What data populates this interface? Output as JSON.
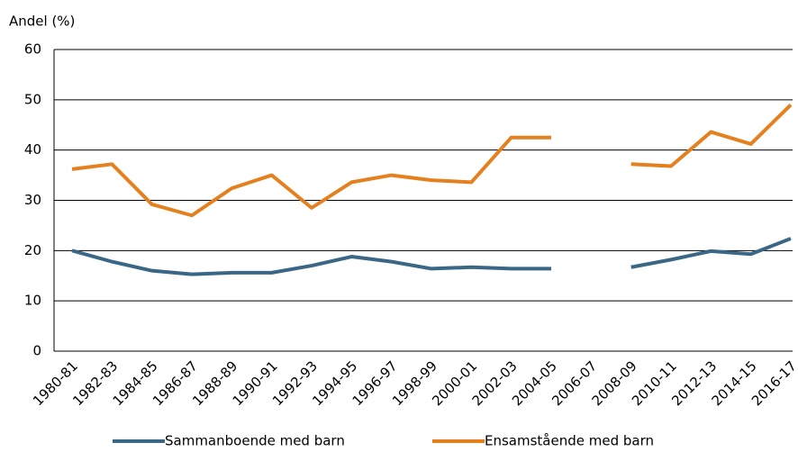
{
  "chart_data": {
    "type": "line",
    "y_label": "Andel (%)",
    "categories": [
      "1980-81",
      "1982-83",
      "1984-85",
      "1986-87",
      "1988-89",
      "1990-91",
      "1992-93",
      "1994-95",
      "1996-97",
      "1998-99",
      "2000-01",
      "2002-03",
      "2004-05",
      "2006-07",
      "2008-09",
      "2010-11",
      "2012-13",
      "2014-15",
      "2016-17"
    ],
    "series": [
      {
        "name": "Sammanboende med barn",
        "color": "#3b6787",
        "values": [
          20,
          17.8,
          16,
          15.3,
          15.6,
          15.6,
          17,
          18.8,
          17.8,
          16.4,
          16.7,
          16.4,
          16.4,
          null,
          16.7,
          18.2,
          19.9,
          19.3,
          22.4
        ]
      },
      {
        "name": "Ensamstående med barn",
        "color": "#e5801e",
        "values": [
          36.2,
          37.2,
          29.2,
          27,
          32.4,
          35,
          28.5,
          33.6,
          35,
          34,
          33.6,
          42.5,
          42.5,
          null,
          37.2,
          36.8,
          43.6,
          41.2,
          49
        ]
      }
    ],
    "ylim": [
      0,
      60
    ],
    "yticks": [
      0,
      10,
      20,
      30,
      40,
      50,
      60
    ],
    "grid": true
  }
}
